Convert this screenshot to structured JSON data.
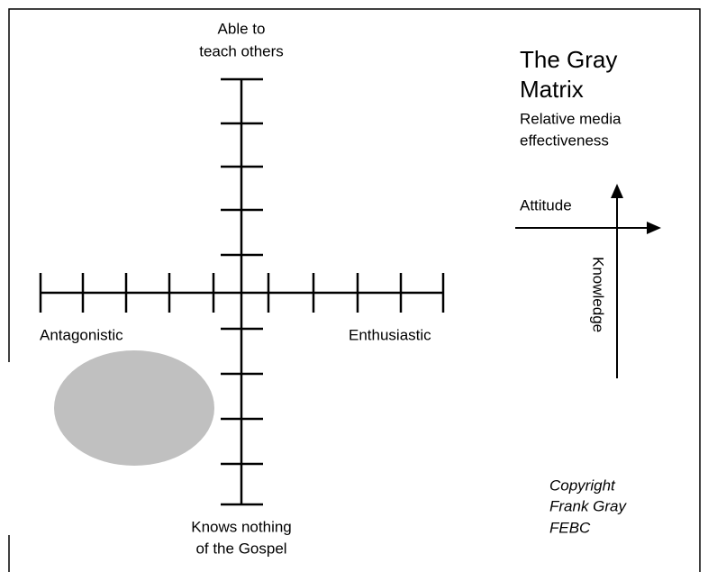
{
  "axes": {
    "top": [
      "Able to",
      "teach others"
    ],
    "bottom": [
      "Knows nothing",
      "of the Gospel"
    ],
    "left": "Antagonistic",
    "right": "Enthusiastic"
  },
  "title": {
    "lines": [
      "The Gray",
      "Matrix"
    ],
    "subtitle": [
      "Relative media",
      "effectiveness"
    ]
  },
  "legend": {
    "horizontal": "Attitude",
    "vertical": "Knowledge"
  },
  "copyright": [
    "Copyright",
    "Frank Gray",
    "FEBC"
  ]
}
